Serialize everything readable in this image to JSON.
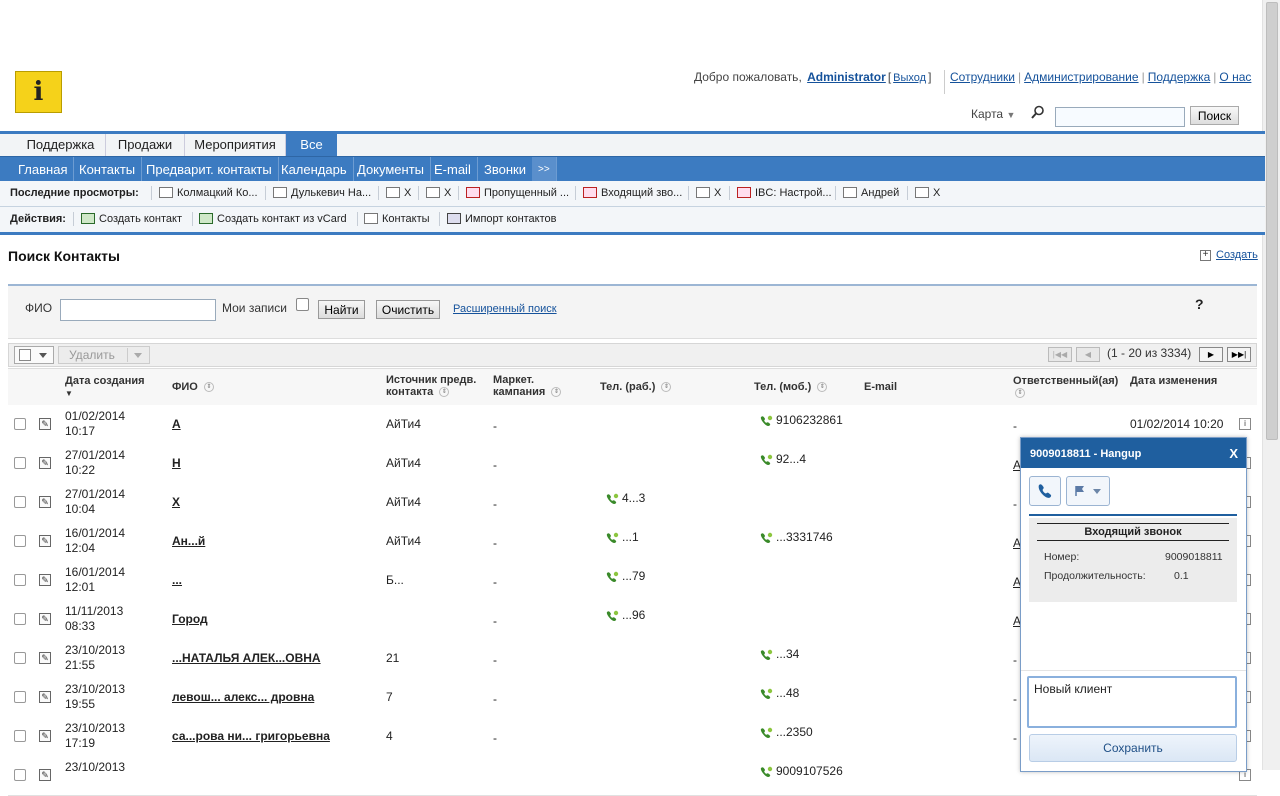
{
  "header": {
    "welcome_text": "Добро пожаловать,",
    "user": "Administrator",
    "logout": "Выход",
    "nav": [
      "Сотрудники",
      "Администрирование",
      "Поддержка",
      "О нас"
    ],
    "map_label": "Карта",
    "search_button": "Поиск"
  },
  "module_tabs": [
    "Поддержка",
    "Продажи",
    "Мероприятия",
    "Все"
  ],
  "sub_nav": [
    "Главная",
    "Контакты",
    "Предварит. контакты",
    "Календарь",
    "Документы",
    "E-mail",
    "Звонки",
    ">>"
  ],
  "recent": {
    "label": "Последние просмотры:",
    "items": [
      "Колмацкий Ко...",
      "Дулькевич На...",
      "X",
      "X",
      "Пропущенный ...",
      "Входящий зво...",
      "X",
      "IBC: Настрой...",
      "Андрей",
      "X"
    ]
  },
  "actions": {
    "label": "Действия:",
    "items": [
      "Создать контакт",
      "Создать контакт из vCard",
      "Контакты",
      "Импорт контактов"
    ]
  },
  "page": {
    "title": "Поиск Контакты",
    "create": "Создать"
  },
  "search": {
    "fio_label": "ФИО",
    "my_records_label": "Мои записи",
    "find_button": "Найти",
    "clear_button": "Очистить",
    "advanced_link": "Расширенный поиск",
    "help": "?"
  },
  "list": {
    "delete_button": "Удалить",
    "range": "(1 - 20 из 3334)",
    "pager": [
      "|◀◀",
      "◀",
      "▶",
      "▶▶|"
    ],
    "columns": [
      "Дата создания",
      "ФИО",
      "Источник предв. контакта",
      "Маркет. кампания",
      "Тел. (раб.)",
      "Тел. (моб.)",
      "E-mail",
      "Ответственный(ая)",
      "Дата изменения"
    ],
    "rows": [
      {
        "date": "01/02/2014",
        "time": "10:17",
        "fio": "А",
        "source": "АйТи4",
        "campaign": "-",
        "work": "",
        "mobile": "9106232861",
        "resp": "-",
        "modified": "01/02/2014 10:20"
      },
      {
        "date": "27/01/2014",
        "time": "10:22",
        "fio": "Н",
        "source": "АйТи4",
        "campaign": "-",
        "work": "",
        "mobile": "92...4",
        "resp": "A",
        "modified": ""
      },
      {
        "date": "27/01/2014",
        "time": "10:04",
        "fio": "Х",
        "source": "АйТи4",
        "campaign": "-",
        "work": "4...3",
        "mobile": "",
        "resp": "-",
        "modified": ""
      },
      {
        "date": "16/01/2014",
        "time": "12:04",
        "fio": "Ан...й",
        "source": "АйТи4",
        "campaign": "-",
        "work": "...1",
        "mobile": "...3331746",
        "resp": "A",
        "modified": ""
      },
      {
        "date": "16/01/2014",
        "time": "12:01",
        "fio": "...",
        "source": "Б...",
        "campaign": "-",
        "work": "...79",
        "mobile": "",
        "resp": "A",
        "modified": ""
      },
      {
        "date": "11/11/2013",
        "time": "08:33",
        "fio": "Город",
        "source": "",
        "campaign": "-",
        "work": "...96",
        "mobile": "",
        "resp": "A",
        "modified": ""
      },
      {
        "date": "23/10/2013",
        "time": "21:55",
        "fio": "...НАТАЛЬЯ АЛЕК...ОВНА",
        "source": "21",
        "campaign": "-",
        "work": "",
        "mobile": "...34",
        "resp": "-",
        "modified": ""
      },
      {
        "date": "23/10/2013",
        "time": "19:55",
        "fio": "левош... алекс... дровна",
        "source": "7",
        "campaign": "-",
        "work": "",
        "mobile": "...48",
        "resp": "-",
        "modified": ""
      },
      {
        "date": "23/10/2013",
        "time": "17:19",
        "fio": "са...рова ни... григорьевна",
        "source": "4",
        "campaign": "-",
        "work": "",
        "mobile": "...2350",
        "resp": "-",
        "modified": ""
      },
      {
        "date": "23/10/2013",
        "time": "",
        "fio": "",
        "source": "",
        "campaign": "",
        "work": "",
        "mobile": "9009107526",
        "resp": "",
        "modified": ""
      }
    ]
  },
  "call_popup": {
    "title": "9009018811 - Hangup",
    "close": "X",
    "heading": "Входящий звонок",
    "number_label": "Номер:",
    "number": "9009018811",
    "duration_label": "Продолжительность:",
    "duration": "0.1",
    "note": "Новый клиент",
    "save": "Сохранить"
  }
}
